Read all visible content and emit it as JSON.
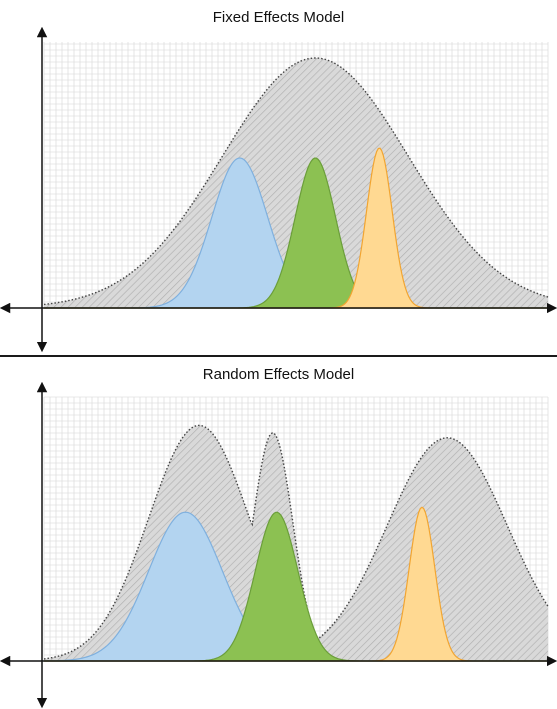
{
  "panels": [
    {
      "id": "fixed",
      "title": "Fixed Effects Model",
      "envelope": [
        {
          "mu": 7.0,
          "sd": 2.4,
          "h": 1.0
        }
      ],
      "studies": [
        {
          "name": "blue",
          "mu": 5.05,
          "sd": 0.72,
          "h": 0.6,
          "fill": "#b3d4f0",
          "stroke": "#7fb0de"
        },
        {
          "name": "green",
          "mu": 7.0,
          "sd": 0.52,
          "h": 0.6,
          "fill": "#8cc152",
          "stroke": "#6b9e3a"
        },
        {
          "name": "orange",
          "mu": 8.65,
          "sd": 0.33,
          "h": 0.64,
          "fill": "#ffd992",
          "stroke": "#f2a531"
        }
      ]
    },
    {
      "id": "random",
      "title": "Random Effects Model",
      "envelope": [
        {
          "mu": 4.0,
          "sd": 1.3,
          "h": 0.95
        },
        {
          "mu": 5.9,
          "sd": 0.52,
          "h": 0.92
        },
        {
          "mu": 10.4,
          "sd": 1.55,
          "h": 0.9
        }
      ],
      "studies": [
        {
          "name": "blue",
          "mu": 3.65,
          "sd": 0.95,
          "h": 0.6,
          "fill": "#b3d4f0",
          "stroke": "#7fb0de"
        },
        {
          "name": "green",
          "mu": 6.0,
          "sd": 0.55,
          "h": 0.6,
          "fill": "#8cc152",
          "stroke": "#6b9e3a"
        },
        {
          "name": "orange",
          "mu": 9.75,
          "sd": 0.33,
          "h": 0.62,
          "fill": "#ffd992",
          "stroke": "#f2a531"
        }
      ]
    }
  ],
  "colors": {
    "grid": "#d6d6d6",
    "envelope_fill": "#d9d9d9",
    "envelope_stroke": "#444444",
    "hatch": "#b0b0b0",
    "axis": "#111111"
  },
  "x_range": [
    0,
    13
  ]
}
